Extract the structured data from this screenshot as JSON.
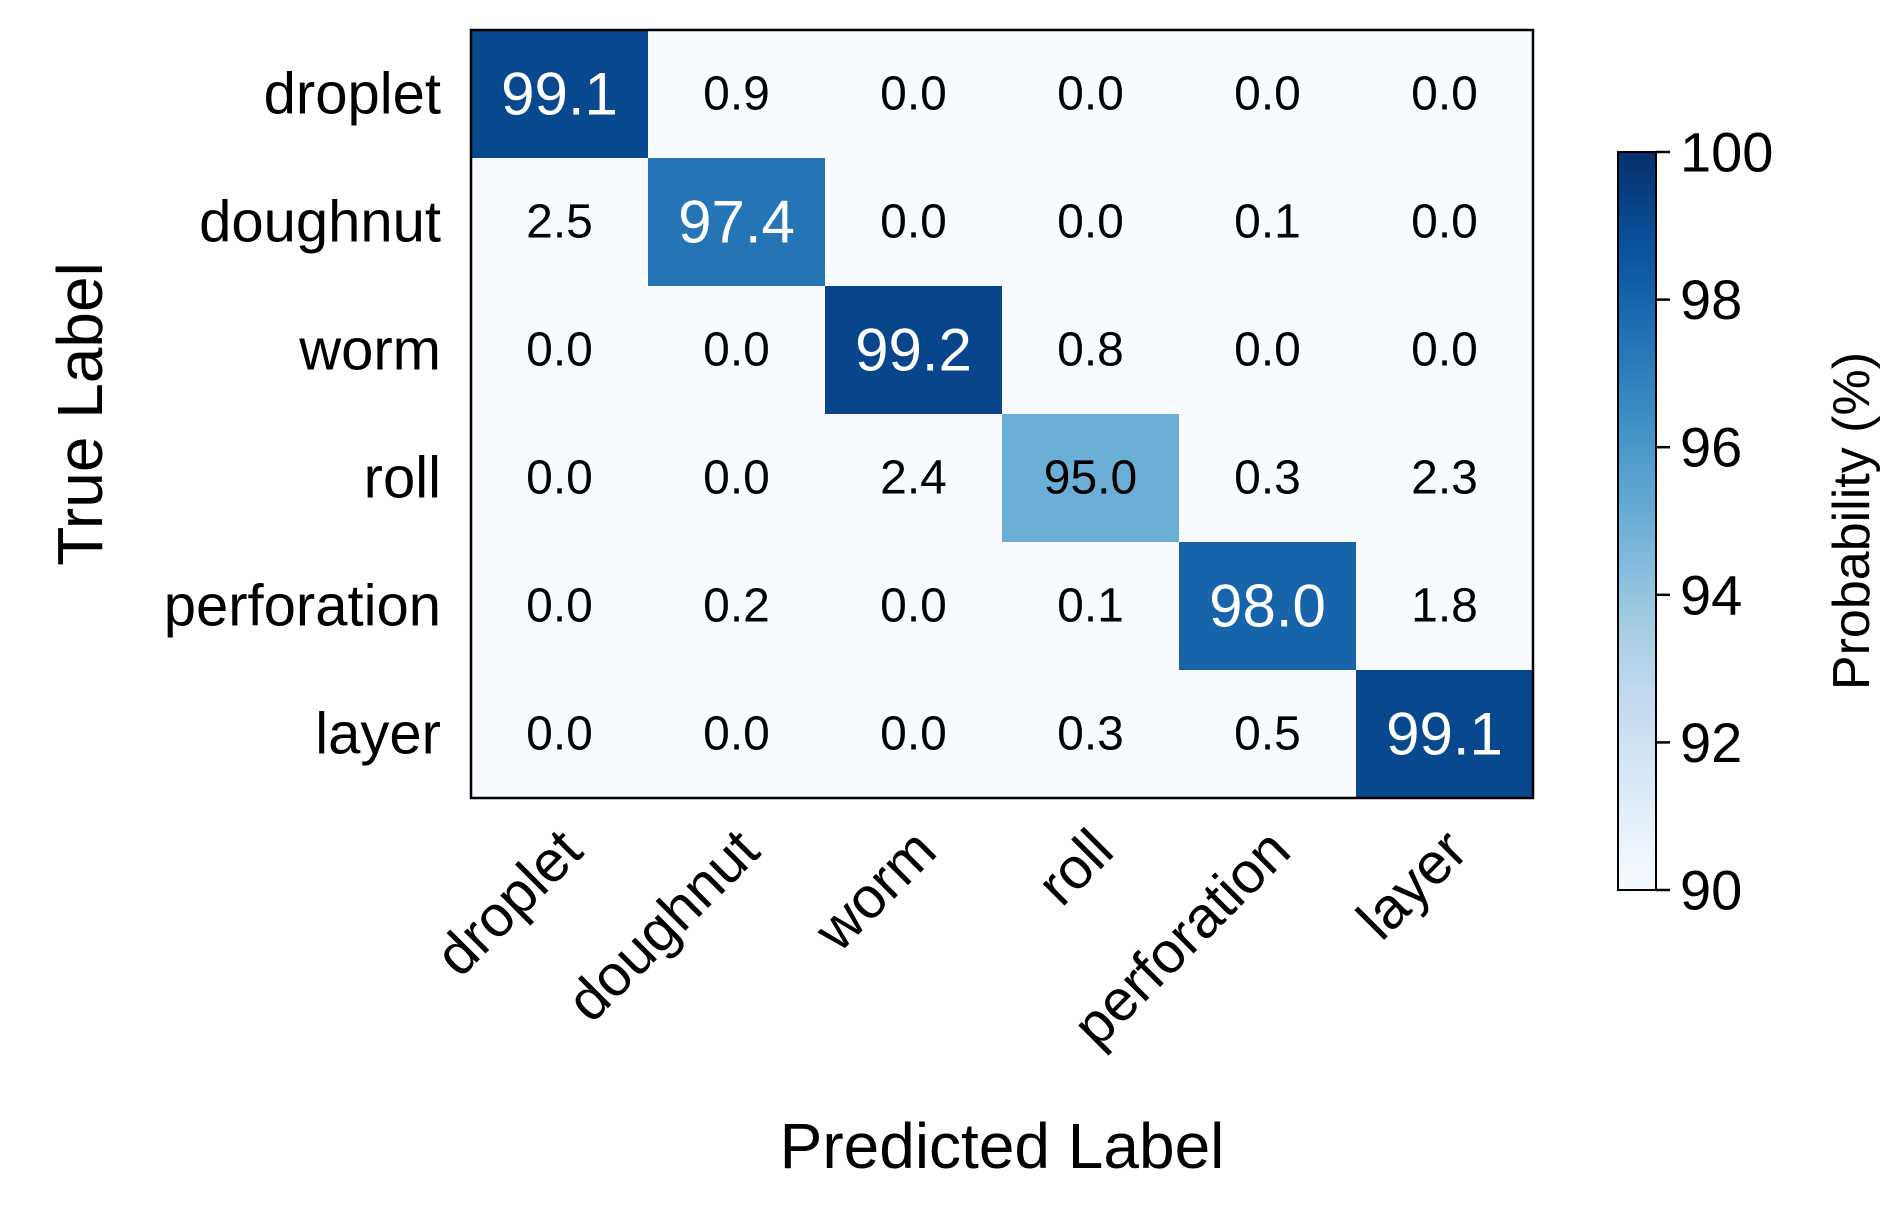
{
  "chart_data": {
    "type": "heatmap",
    "xlabel": "Predicted Label",
    "ylabel": "True Label",
    "x_categories": [
      "droplet",
      "doughnut",
      "worm",
      "roll",
      "perforation",
      "layer"
    ],
    "y_categories": [
      "droplet",
      "doughnut",
      "worm",
      "roll",
      "perforation",
      "layer"
    ],
    "values": [
      [
        99.1,
        0.9,
        0.0,
        0.0,
        0.0,
        0.0
      ],
      [
        2.5,
        97.4,
        0.0,
        0.0,
        0.1,
        0.0
      ],
      [
        0.0,
        0.0,
        99.2,
        0.8,
        0.0,
        0.0
      ],
      [
        0.0,
        0.0,
        2.4,
        95.0,
        0.3,
        2.3
      ],
      [
        0.0,
        0.2,
        0.0,
        0.1,
        98.0,
        1.8
      ],
      [
        0.0,
        0.0,
        0.0,
        0.3,
        0.5,
        99.1
      ]
    ],
    "value_labels": [
      [
        "99.1",
        "0.9",
        "0.0",
        "0.0",
        "0.0",
        "0.0"
      ],
      [
        "2.5",
        "97.4",
        "0.0",
        "0.0",
        "0.1",
        "0.0"
      ],
      [
        "0.0",
        "0.0",
        "99.2",
        "0.8",
        "0.0",
        "0.0"
      ],
      [
        "0.0",
        "0.0",
        "2.4",
        "95.0",
        "0.3",
        "2.3"
      ],
      [
        "0.0",
        "0.2",
        "0.0",
        "0.1",
        "98.0",
        "1.8"
      ],
      [
        "0.0",
        "0.0",
        "0.0",
        "0.3",
        "0.5",
        "99.1"
      ]
    ],
    "colorbar": {
      "label": "Probability (%)",
      "range": [
        90,
        100
      ],
      "ticks": [
        90,
        92,
        94,
        96,
        98,
        100
      ],
      "tick_labels": [
        "90",
        "92",
        "94",
        "96",
        "98",
        "100"
      ],
      "placement": "right"
    },
    "colormap": "Blues",
    "colormap_stops": [
      "#f7fbff",
      "#deebf7",
      "#c6dbef",
      "#9ecae1",
      "#6baed6",
      "#4292c6",
      "#2171b5",
      "#08519c",
      "#08306b"
    ],
    "text_color_dark": "#000000",
    "text_color_light": "#ffffff",
    "grid": false
  }
}
